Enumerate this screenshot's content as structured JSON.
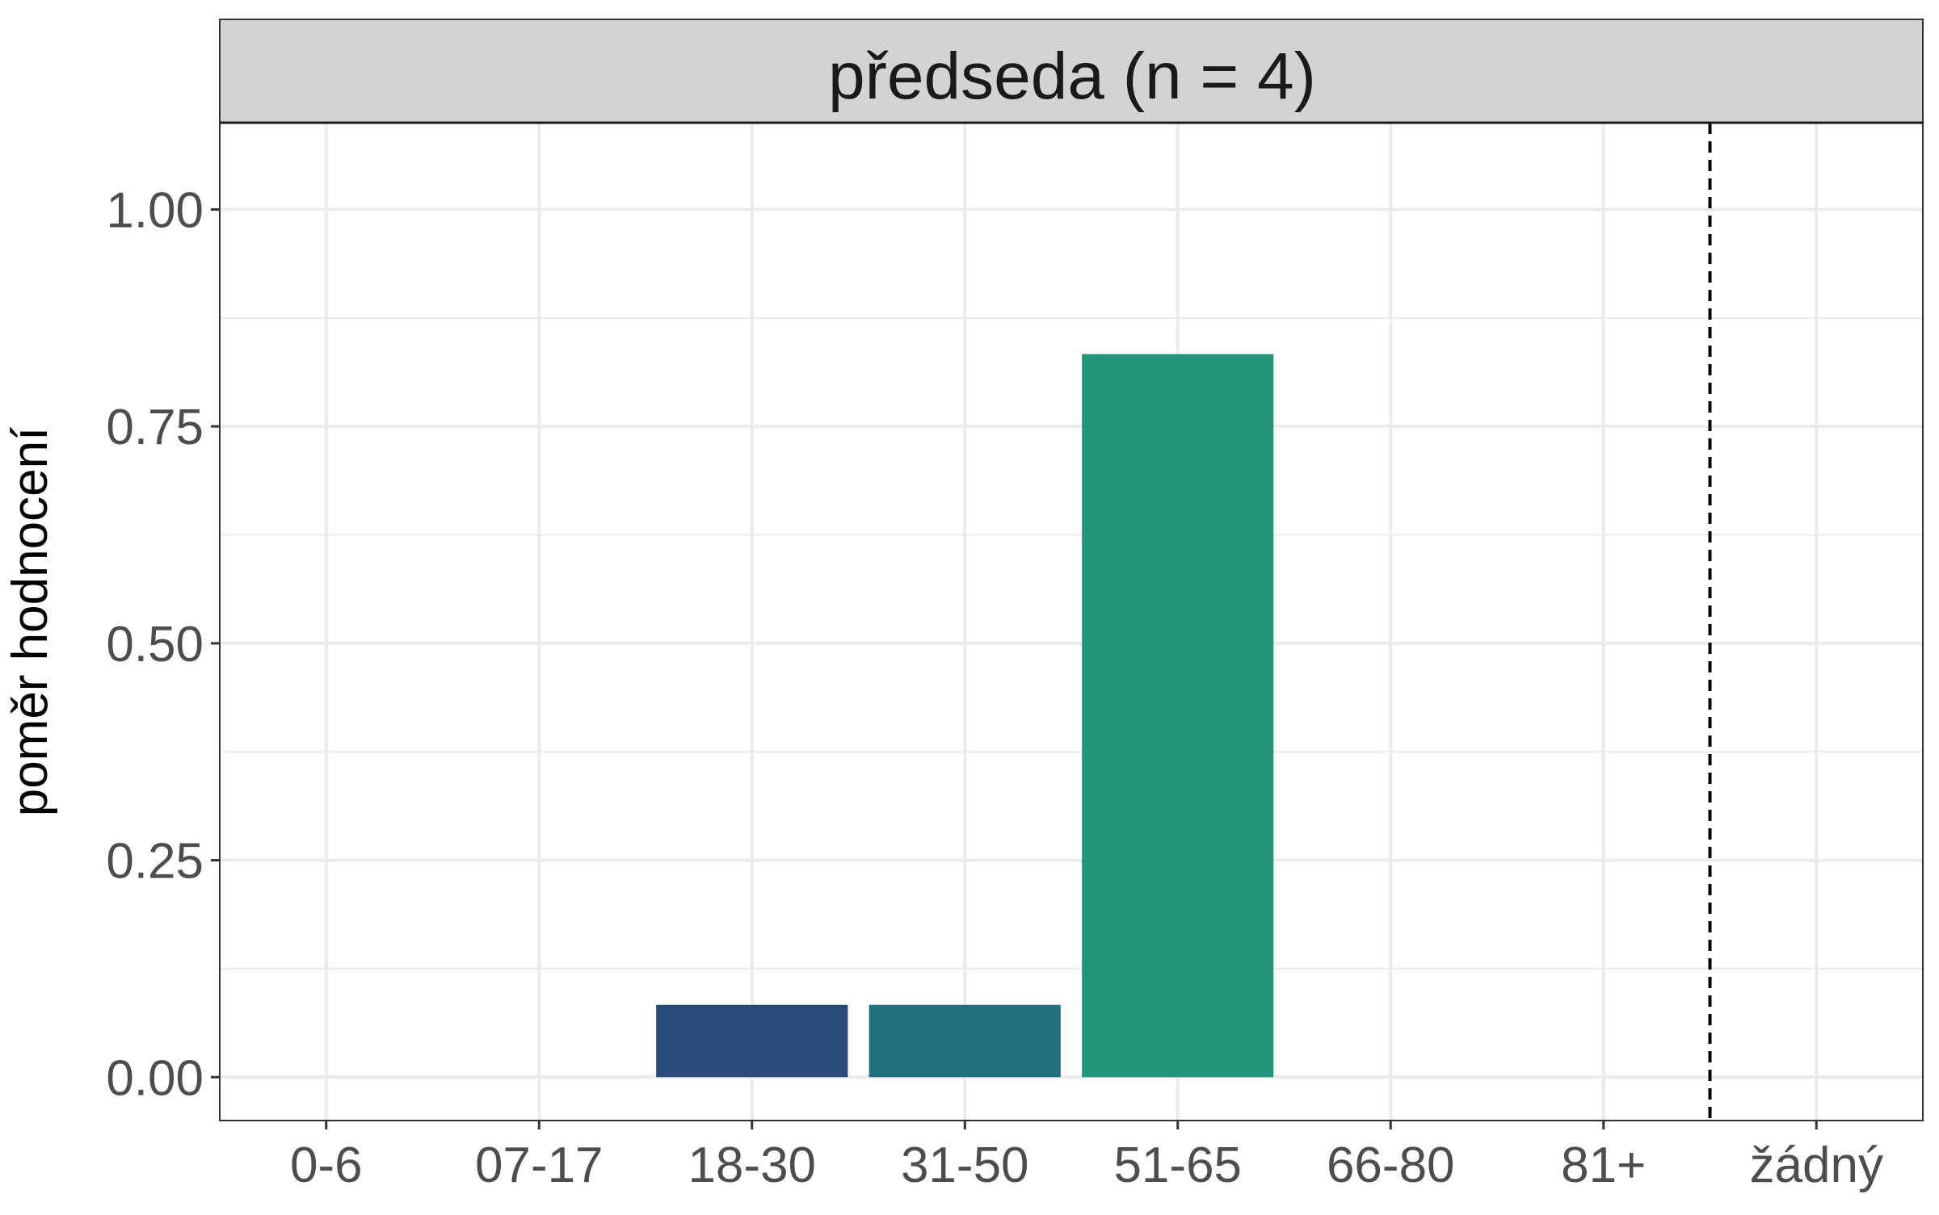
{
  "chart_data": {
    "type": "bar",
    "facet_title": "předseda (n = 4)",
    "xlabel": "",
    "ylabel": "poměr hodnocení",
    "categories": [
      "0-6",
      "07-17",
      "18-30",
      "31-50",
      "51-65",
      "66-80",
      "81+",
      "žádný"
    ],
    "values": [
      0,
      0,
      0.0833,
      0.0833,
      0.8333,
      0,
      0,
      0
    ],
    "bar_colors": [
      "#2A4A7B",
      "#2A4A7B",
      "#2A4A7B",
      "#21707E",
      "#229477",
      "#229477",
      "#229477",
      "#229477"
    ],
    "ylim": [
      -0.05,
      1.1
    ],
    "yticks": [
      0,
      0.25,
      0.5,
      0.75,
      1.0
    ],
    "ytick_labels": [
      "0.00",
      "0.25",
      "0.50",
      "0.75",
      "1.00"
    ],
    "reference_line": {
      "between_categories": [
        "81+",
        "žádný"
      ],
      "style": "dashed",
      "color": "#000000"
    },
    "grid": true,
    "strip_color": "#D3D3D3",
    "legend": "none"
  }
}
